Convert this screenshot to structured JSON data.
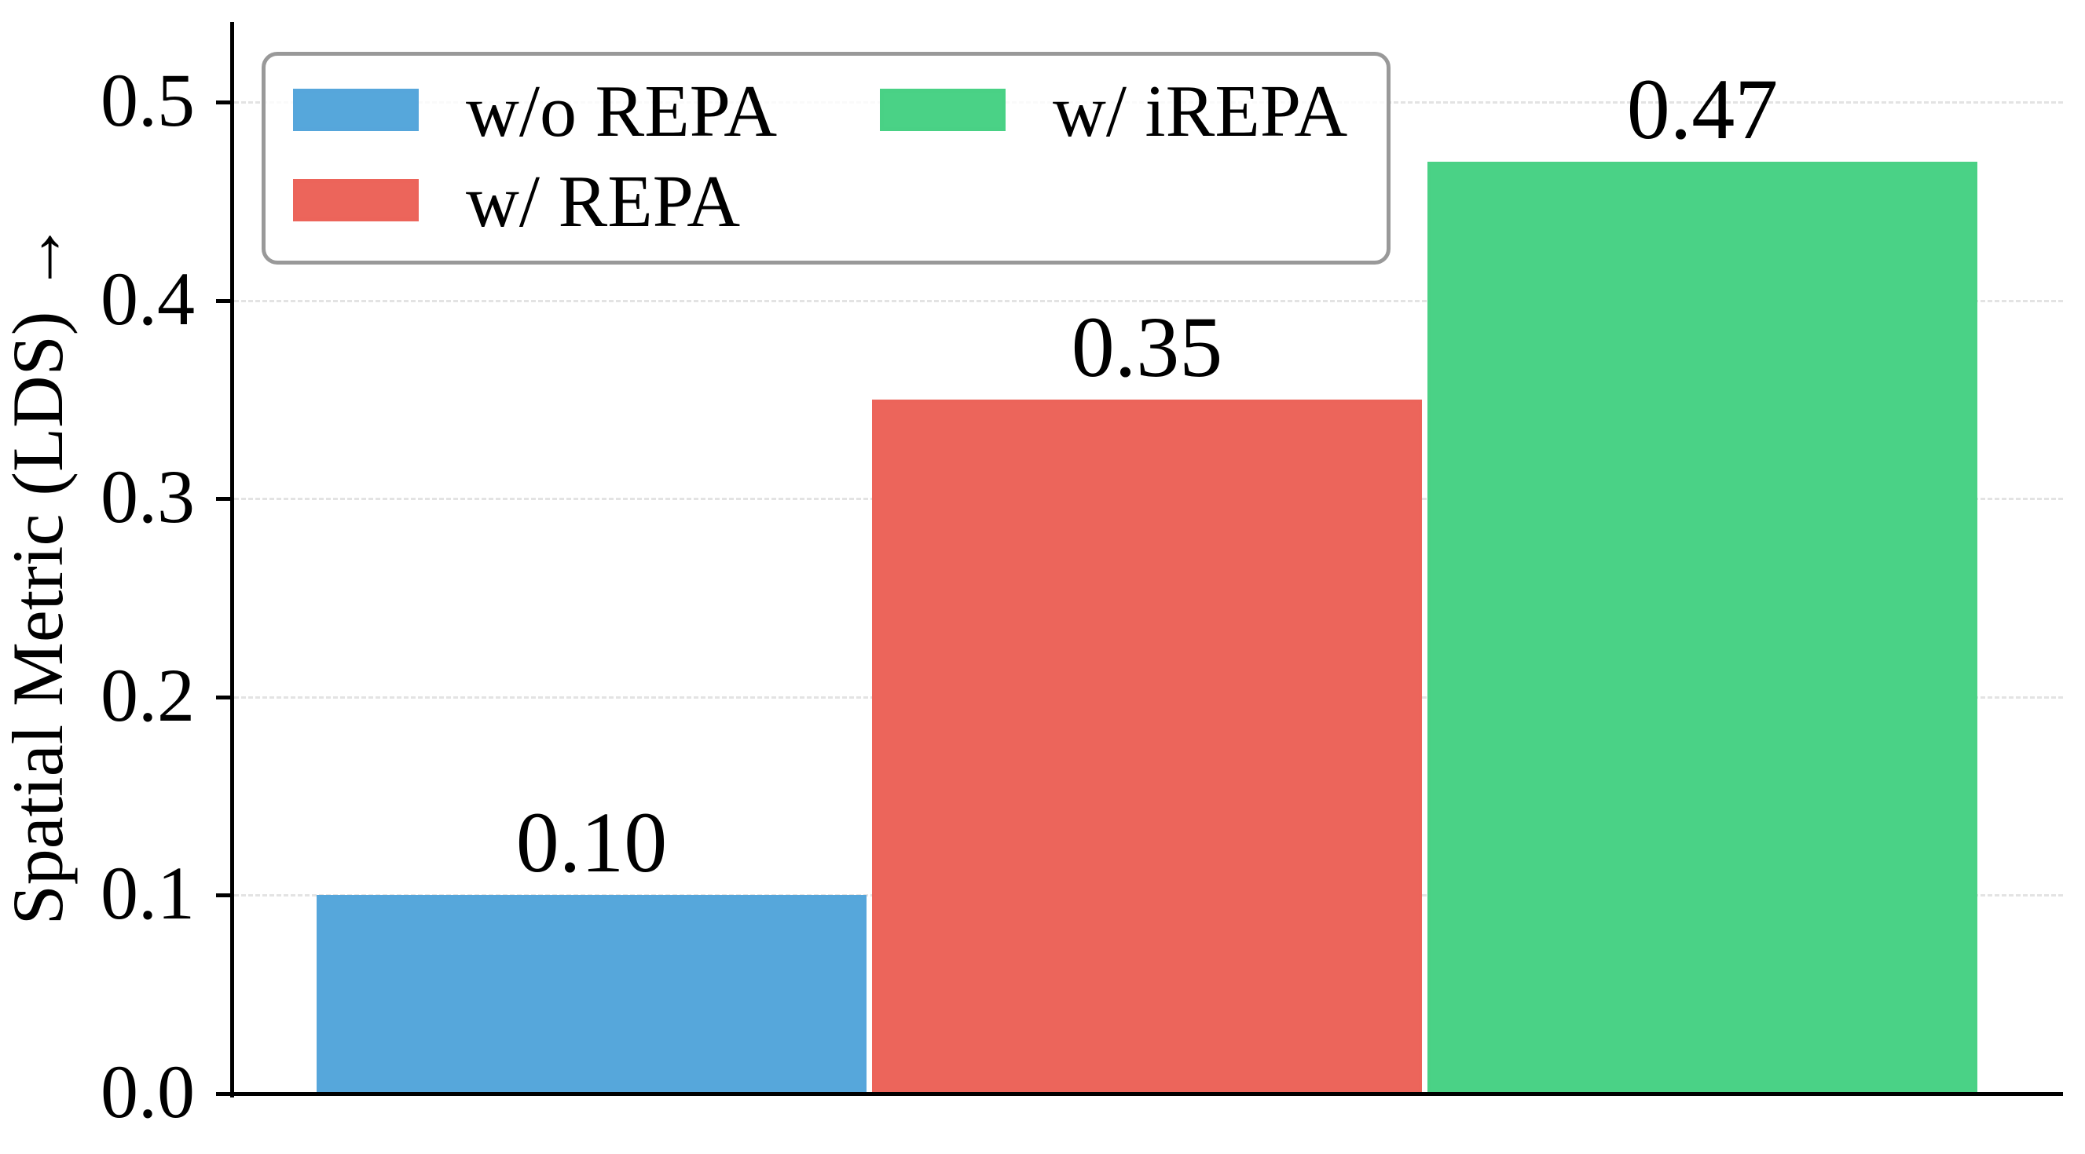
{
  "chart_data": {
    "type": "bar",
    "title": "",
    "xlabel": "",
    "ylabel": "Spatial Metric (LDS) →",
    "categories": [
      "w/o REPA",
      "w/ REPA",
      "w/ iREPA"
    ],
    "values": [
      0.1,
      0.35,
      0.47
    ],
    "bar_labels": [
      "0.10",
      "0.35",
      "0.47"
    ],
    "bar_colors": [
      "#56a7db",
      "#ec655b",
      "#4ad286"
    ],
    "ylim": [
      0,
      0.54
    ],
    "ytick_values": [
      0.0,
      0.1,
      0.2,
      0.3,
      0.4,
      0.5
    ],
    "ytick_labels": [
      "0.0",
      "0.1",
      "0.2",
      "0.3",
      "0.4",
      "0.5"
    ],
    "grid": {
      "axis": "y",
      "style": "dashed",
      "on": true
    },
    "legend": {
      "position": "upper left",
      "ncol": 2,
      "entries": [
        {
          "label": "w/o REPA",
          "color": "#56a7db"
        },
        {
          "label": "w/ REPA",
          "color": "#ec655b"
        },
        {
          "label": "w/ iREPA",
          "color": "#4ad286"
        }
      ]
    }
  },
  "colors": {
    "axis": "#000000",
    "text": "#000000",
    "grid": "#e3e3e3",
    "legend_border": "#999999",
    "background": "#ffffff",
    "bar_blue": "#56a7db",
    "bar_red": "#ec655b",
    "bar_green": "#4ad286"
  }
}
